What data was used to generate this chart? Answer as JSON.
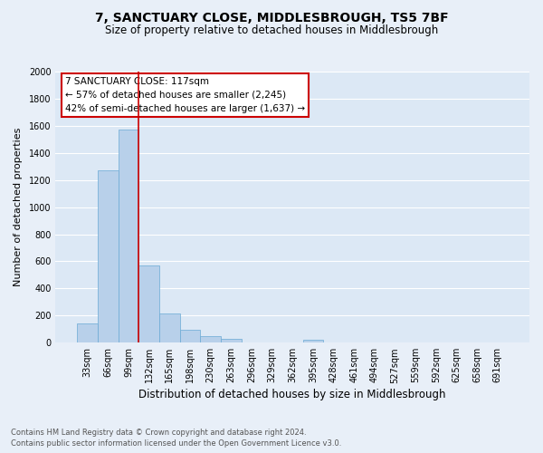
{
  "title": "7, SANCTUARY CLOSE, MIDDLESBROUGH, TS5 7BF",
  "subtitle": "Size of property relative to detached houses in Middlesbrough",
  "xlabel": "Distribution of detached houses by size in Middlesbrough",
  "ylabel": "Number of detached properties",
  "footnote1": "Contains HM Land Registry data © Crown copyright and database right 2024.",
  "footnote2": "Contains public sector information licensed under the Open Government Licence v3.0.",
  "categories": [
    "33sqm",
    "66sqm",
    "99sqm",
    "132sqm",
    "165sqm",
    "198sqm",
    "230sqm",
    "263sqm",
    "296sqm",
    "329sqm",
    "362sqm",
    "395sqm",
    "428sqm",
    "461sqm",
    "494sqm",
    "527sqm",
    "559sqm",
    "592sqm",
    "625sqm",
    "658sqm",
    "691sqm"
  ],
  "values": [
    140,
    1270,
    1570,
    570,
    215,
    95,
    50,
    25,
    0,
    0,
    0,
    20,
    0,
    0,
    0,
    0,
    0,
    0,
    0,
    0,
    0
  ],
  "bar_color": "#b8d0ea",
  "bar_edge_color": "#6aaad4",
  "vline_color": "#cc0000",
  "vline_x": 2.5,
  "annotation_title": "7 SANCTUARY CLOSE: 117sqm",
  "annotation_line1": "← 57% of detached houses are smaller (2,245)",
  "annotation_line2": "42% of semi-detached houses are larger (1,637) →",
  "annotation_box_facecolor": "white",
  "annotation_box_edgecolor": "#cc0000",
  "ylim": [
    0,
    2000
  ],
  "yticks": [
    0,
    200,
    400,
    600,
    800,
    1000,
    1200,
    1400,
    1600,
    1800,
    2000
  ],
  "fig_bg_color": "#e8eff8",
  "plot_bg_color": "#dce8f5",
  "grid_color": "white",
  "title_fontsize": 10,
  "subtitle_fontsize": 8.5,
  "xlabel_fontsize": 8.5,
  "ylabel_fontsize": 8,
  "tick_fontsize": 7,
  "annot_fontsize": 7.5,
  "footnote_fontsize": 6
}
